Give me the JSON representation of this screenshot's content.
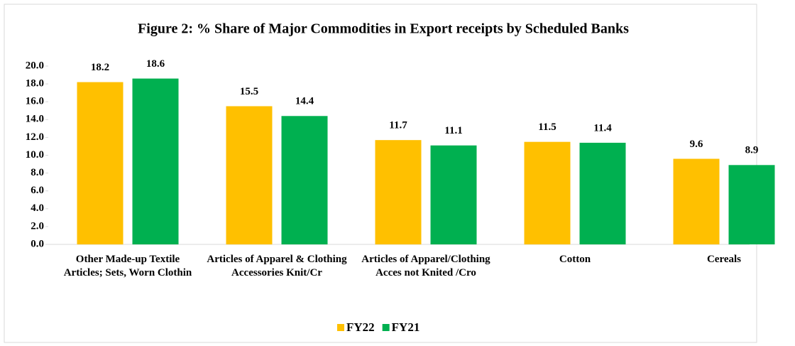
{
  "chart_data": {
    "type": "bar",
    "title": "Figure 2: % Share of Major Commodities in Export receipts by Scheduled Banks",
    "categories": [
      "Other Made-up Textile Articles; Sets, Worn Clothin",
      "Articles of Apparel & Clothing Accessories Knit/Cr",
      "Articles of Apparel/Clothing Acces not Knited /Cro",
      "Cotton",
      "Cereals"
    ],
    "series": [
      {
        "name": "FY22",
        "color": "#ffc000",
        "values": [
          18.2,
          15.5,
          11.7,
          11.5,
          9.6
        ]
      },
      {
        "name": "FY21",
        "color": "#00b050",
        "values": [
          18.6,
          14.4,
          11.1,
          11.4,
          8.9
        ]
      }
    ],
    "ylim": [
      0,
      20
    ],
    "yticks": [
      {
        "value": 0,
        "label": "0.0"
      },
      {
        "value": 2,
        "label": "2.0"
      },
      {
        "value": 4,
        "label": "4.0"
      },
      {
        "value": 6,
        "label": "6.0"
      },
      {
        "value": 8,
        "label": "8.0"
      },
      {
        "value": 10,
        "label": "10.0"
      },
      {
        "value": 12,
        "label": "12.0"
      },
      {
        "value": 14,
        "label": "14.0"
      },
      {
        "value": 16,
        "label": "16.0"
      },
      {
        "value": 18,
        "label": "18.0"
      },
      {
        "value": 20,
        "label": "20.0"
      }
    ],
    "legend": "bottom"
  }
}
